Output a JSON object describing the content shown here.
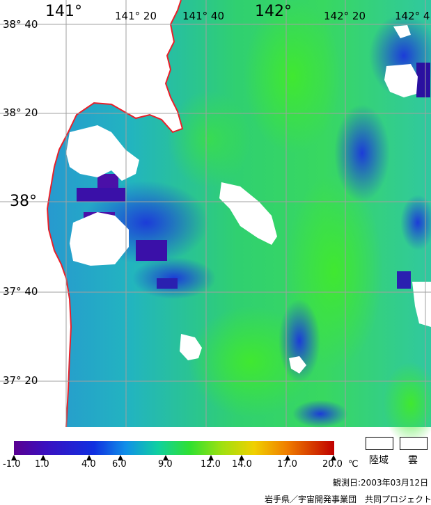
{
  "map": {
    "longitude_labels": [
      {
        "text": "141°",
        "class": "major"
      },
      {
        "text": "141° 20",
        "class": "minor"
      },
      {
        "text": "141° 40",
        "class": "minor"
      },
      {
        "text": "142°",
        "class": "major"
      },
      {
        "text": "142° 20",
        "class": "minor"
      },
      {
        "text": "142° 4",
        "class": "minor"
      }
    ],
    "latitude_labels": [
      {
        "text": "38° 40",
        "class": "minor"
      },
      {
        "text": "38° 20",
        "class": "minor"
      },
      {
        "text": "38°",
        "class": "major"
      },
      {
        "text": "37° 40",
        "class": "minor"
      },
      {
        "text": "37° 20",
        "class": "minor"
      }
    ],
    "colors": {
      "land": "#ffffff",
      "coast": "#e8202a",
      "grid": "#a0a0a0",
      "ocean_cold": "#1f4fd0",
      "ocean_mid": "#22c0b0",
      "ocean_warm": "#36e040"
    }
  },
  "legend": {
    "tick_labels": [
      "-1.0",
      "1.0",
      "4.0",
      "6.0",
      "9.0",
      "12.0",
      "14.0",
      "17.0",
      "20.0"
    ],
    "unit": "℃",
    "land_label": "陸域",
    "cloud_label": "雲"
  },
  "footer": {
    "observation_date": "観測日:2003年03月12日",
    "credit": "岩手県／宇宙開発事業団　共同プロジェクト"
  }
}
